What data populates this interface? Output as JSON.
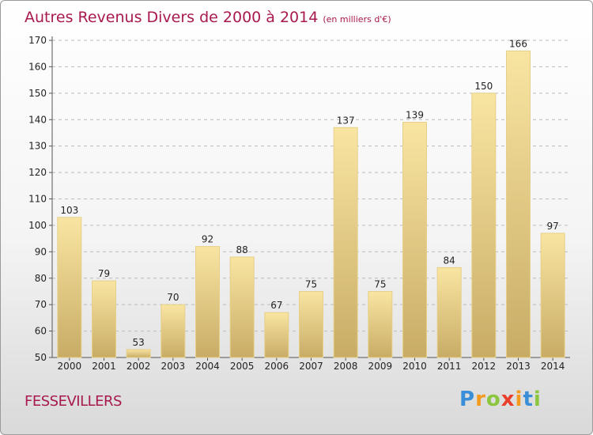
{
  "title": "Autres Revenus Divers de 2000 à 2014",
  "unit": "(en milliers d'€)",
  "location": "FESSEVILLERS",
  "logo": {
    "letters": [
      "P",
      "r",
      "o",
      "x",
      "i",
      "t",
      "i"
    ],
    "colors": [
      "#3a8fd8",
      "#f39a1f",
      "#8cc63f",
      "#e8402c",
      "#f39a1f",
      "#3a8fd8",
      "#8cc63f"
    ]
  },
  "colors": {
    "title": "#a8194f",
    "bar_light": "#f9e5a2",
    "bar_dark": "#c8ac66",
    "bar_edge": "#e6cf88"
  },
  "chart_data": {
    "type": "bar",
    "categories": [
      "2000",
      "2001",
      "2002",
      "2003",
      "2004",
      "2005",
      "2006",
      "2007",
      "2008",
      "2009",
      "2010",
      "2011",
      "2012",
      "2013",
      "2014"
    ],
    "values": [
      103,
      79,
      53,
      70,
      92,
      88,
      67,
      75,
      137,
      75,
      139,
      84,
      150,
      166,
      97
    ],
    "ylim": [
      50,
      170
    ],
    "yticks": [
      50,
      60,
      70,
      80,
      90,
      100,
      110,
      120,
      130,
      140,
      150,
      160,
      170
    ],
    "grid": true,
    "legend": "none"
  }
}
